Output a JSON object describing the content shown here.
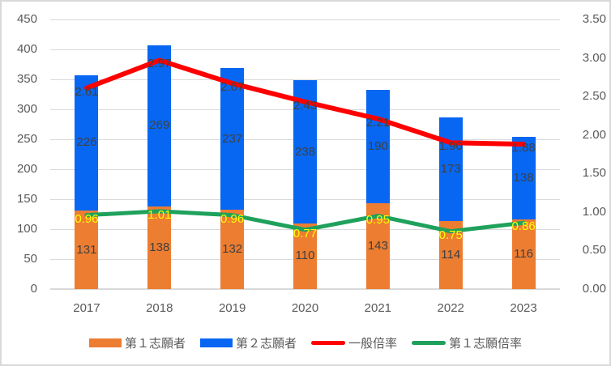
{
  "chart_data": {
    "type": "combo: stacked bar + line (dual axis)",
    "categories": [
      "2017",
      "2018",
      "2019",
      "2020",
      "2021",
      "2022",
      "2023"
    ],
    "series": [
      {
        "name": "第１志願者",
        "kind": "bar",
        "axis": "left",
        "color": "#ED7D31",
        "values": [
          131,
          138,
          132,
          110,
          143,
          114,
          116
        ],
        "labels": [
          "131",
          "138",
          "132",
          "110",
          "143",
          "114",
          "116"
        ],
        "label_color": "#404040"
      },
      {
        "name": "第２志願者",
        "kind": "bar",
        "axis": "left",
        "color": "#0767F2",
        "values": [
          226,
          269,
          237,
          238,
          190,
          173,
          138
        ],
        "labels": [
          "226",
          "269",
          "237",
          "238",
          "190",
          "173",
          "138"
        ],
        "label_color": "#404040"
      },
      {
        "name": "一般倍率",
        "kind": "line",
        "axis": "right",
        "color": "#FE0000",
        "values": [
          2.61,
          2.97,
          2.67,
          2.43,
          2.21,
          1.9,
          1.88
        ],
        "labels": [
          "2.61",
          "2.97",
          "2.67",
          "2.43",
          "2.21",
          "1.90",
          "1.88"
        ],
        "label_color": "#404040",
        "stroke_width": 6
      },
      {
        "name": "第１志願倍率",
        "kind": "line",
        "axis": "right",
        "color": "#1FA15C",
        "values": [
          0.96,
          1.01,
          0.96,
          0.77,
          0.95,
          0.75,
          0.86
        ],
        "labels": [
          "0.96",
          "1.01",
          "0.96",
          "0.77",
          "0.95",
          "0.75",
          "0.86"
        ],
        "label_color": "#FFFF00",
        "stroke_width": 5
      }
    ],
    "stacked": true,
    "grid": true,
    "legend_position": "bottom",
    "left_axis": {
      "min": 0,
      "max": 450,
      "ticks": [
        "0",
        "50",
        "100",
        "150",
        "200",
        "250",
        "300",
        "350",
        "400",
        "450"
      ]
    },
    "right_axis": {
      "min": 0,
      "max": 3.5,
      "ticks": [
        "0.00",
        "0.50",
        "1.00",
        "1.50",
        "2.00",
        "2.50",
        "3.00",
        "3.50"
      ]
    }
  },
  "styles": {
    "background": "#FFFFFF",
    "border_color": "#D9D9D9",
    "gridline_color": "#D9D9D9",
    "axis_text_color": "#595959"
  }
}
